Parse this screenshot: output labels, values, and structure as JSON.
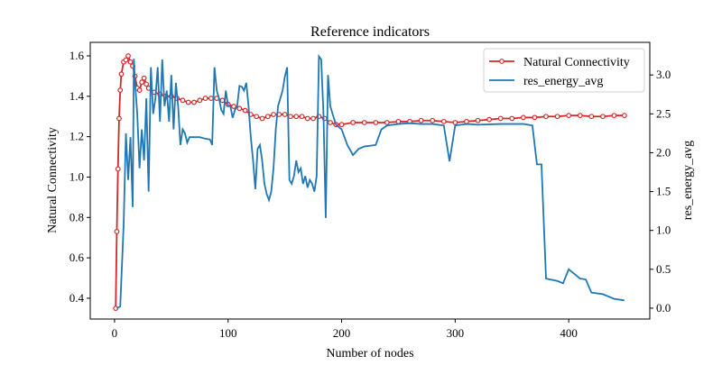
{
  "chart_data": {
    "type": "line",
    "title": "Reference indicators",
    "x_label": "Number of nodes",
    "y_label": "Natural Connectivity",
    "y2_label": "res_energy_avg",
    "xlim": [
      -21.4,
      471.4
    ],
    "xticks": [
      0,
      100,
      200,
      300,
      400
    ],
    "ylim": [
      0.297,
      1.667
    ],
    "yticks": [
      0.4,
      0.6,
      0.8,
      {
        "value": 1,
        "label": "1.0"
      },
      1.2,
      1.4,
      1.6
    ],
    "y2lim": [
      -0.14,
      3.42
    ],
    "y2ticks": [
      {
        "value": 0,
        "label": "0.0"
      },
      0.5,
      {
        "value": 1,
        "label": "1.0"
      },
      1.5,
      {
        "value": 2,
        "label": "2.0"
      },
      2.5,
      {
        "value": 3,
        "label": "3.0"
      }
    ],
    "legend": "upper right",
    "series": [
      {
        "name": "Natural Connectivity",
        "color": "#d62728",
        "markers": true,
        "x": [
          1,
          2,
          3,
          4,
          5,
          6,
          8,
          10,
          12,
          14,
          16,
          18,
          20,
          22,
          24,
          26,
          28,
          30,
          35,
          40,
          45,
          50,
          55,
          60,
          65,
          70,
          75,
          80,
          85,
          90,
          95,
          100,
          105,
          110,
          115,
          120,
          125,
          130,
          135,
          140,
          145,
          150,
          155,
          160,
          165,
          170,
          175,
          180,
          185,
          190,
          195,
          200,
          210,
          220,
          230,
          240,
          250,
          260,
          270,
          280,
          290,
          300,
          310,
          320,
          330,
          340,
          350,
          360,
          370,
          380,
          390,
          400,
          410,
          420,
          430,
          440,
          449
        ],
        "values": [
          0.35,
          0.73,
          1.04,
          1.29,
          1.43,
          1.51,
          1.57,
          1.58,
          1.6,
          1.57,
          1.55,
          1.5,
          1.44,
          1.43,
          1.47,
          1.49,
          1.46,
          1.44,
          1.42,
          1.41,
          1.4,
          1.4,
          1.39,
          1.38,
          1.37,
          1.37,
          1.38,
          1.39,
          1.39,
          1.39,
          1.38,
          1.36,
          1.35,
          1.34,
          1.33,
          1.31,
          1.3,
          1.29,
          1.3,
          1.31,
          1.31,
          1.31,
          1.3,
          1.3,
          1.3,
          1.29,
          1.29,
          1.3,
          1.29,
          1.27,
          1.26,
          1.26,
          1.27,
          1.27,
          1.27,
          1.27,
          1.275,
          1.275,
          1.28,
          1.28,
          1.275,
          1.27,
          1.275,
          1.28,
          1.285,
          1.29,
          1.29,
          1.295,
          1.295,
          1.3,
          1.3,
          1.305,
          1.305,
          1.3,
          1.3,
          1.305,
          1.305
        ]
      },
      {
        "name": "res_energy_avg",
        "color": "#1f77b4",
        "axis": "y2",
        "x": [
          2,
          5,
          8,
          10,
          12,
          14,
          16,
          17,
          18,
          20,
          22,
          24,
          26,
          28,
          30,
          32,
          34,
          36,
          38,
          40,
          42,
          44,
          46,
          48,
          50,
          52,
          54,
          56,
          58,
          60,
          62,
          64,
          66,
          70,
          75,
          80,
          84,
          86,
          88,
          90,
          92,
          94,
          96,
          98,
          100,
          102,
          104,
          106,
          108,
          110,
          112,
          114,
          116,
          118,
          120,
          122,
          124,
          126,
          128,
          130,
          132,
          134,
          136,
          138,
          140,
          142,
          144,
          146,
          148,
          150,
          152,
          154,
          156,
          158,
          160,
          162,
          164,
          166,
          168,
          170,
          172,
          174,
          176,
          178,
          180,
          182,
          184,
          186,
          188,
          190,
          192,
          195,
          200,
          205,
          210,
          215,
          220,
          230,
          235,
          240,
          250,
          260,
          270,
          280,
          290,
          295,
          300,
          310,
          320,
          340,
          360,
          368,
          372,
          376,
          380,
          390,
          395,
          400,
          405,
          410,
          415,
          420,
          430,
          440,
          449
        ],
        "values": [
          0,
          0.02,
          1.07,
          2.25,
          1.65,
          2.2,
          1.3,
          3.21,
          2.92,
          2.5,
          1.8,
          2.3,
          1.9,
          2.7,
          1.5,
          3.1,
          2.5,
          2.7,
          3.1,
          2.4,
          3.2,
          2.6,
          2.8,
          2.4,
          3.0,
          2.3,
          2.9,
          2.6,
          2.1,
          2.3,
          2.25,
          2.13,
          2.2,
          2.2,
          2.2,
          2.18,
          2.17,
          2.1,
          3.1,
          2.8,
          2.7,
          2.55,
          2.5,
          2.8,
          2.6,
          2.6,
          2.45,
          2.55,
          2.6,
          2.86,
          2.85,
          2.8,
          2.9,
          2.6,
          2.2,
          1.9,
          1.53,
          2.05,
          2.1,
          1.9,
          1.6,
          1.47,
          1.39,
          1.5,
          1.8,
          2.3,
          2.6,
          2.7,
          2.8,
          2.98,
          3.1,
          1.65,
          1.6,
          1.7,
          1.9,
          1.75,
          1.8,
          1.6,
          1.7,
          1.55,
          1.65,
          1.6,
          1.5,
          1.7,
          3.24,
          3.2,
          2.5,
          1.16,
          3.0,
          2.6,
          2.5,
          2.36,
          2.3,
          2.1,
          1.97,
          2.05,
          2.08,
          2.1,
          2.3,
          2.35,
          2.37,
          2.38,
          2.37,
          2.37,
          2.35,
          1.89,
          2.35,
          2.37,
          2.36,
          2.37,
          2.37,
          2.35,
          1.85,
          1.85,
          0.38,
          0.35,
          0.32,
          0.5,
          0.44,
          0.38,
          0.37,
          0.2,
          0.18,
          0.12,
          0.1
        ]
      }
    ]
  }
}
